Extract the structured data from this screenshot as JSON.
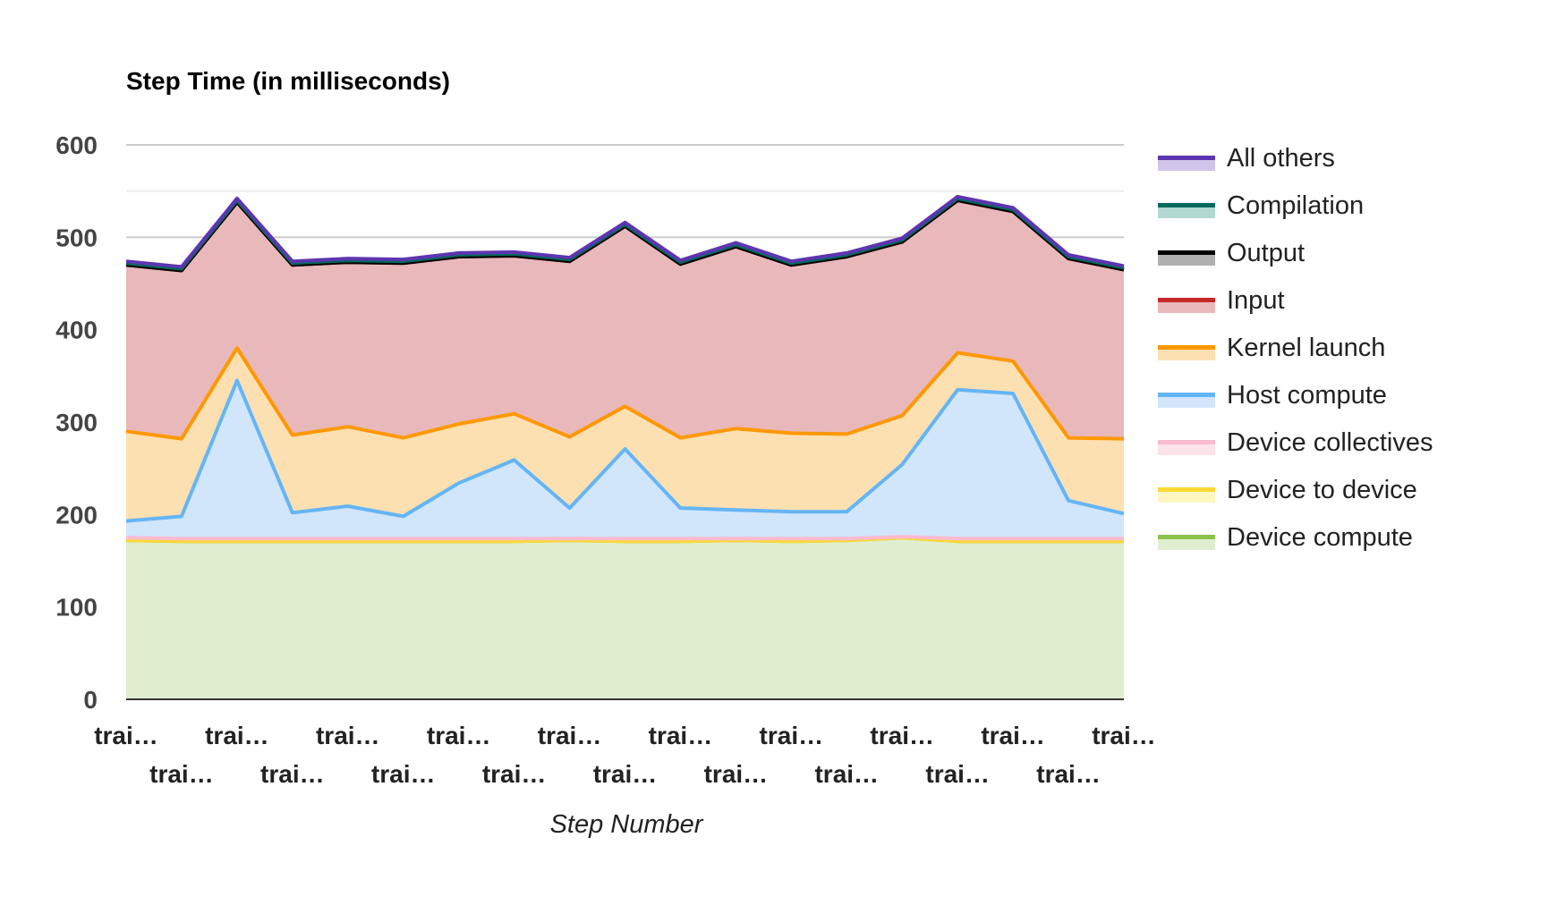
{
  "chart_data": {
    "type": "area",
    "stacked": true,
    "title": "Step Time (in milliseconds)",
    "xlabel": "Step Number",
    "ylabel": "",
    "ylim": [
      0,
      600
    ],
    "yticks": [
      0,
      100,
      200,
      300,
      400,
      500,
      600
    ],
    "grid": true,
    "legend_position": "right",
    "categories": [
      "trai…",
      "trai…",
      "trai…",
      "trai…",
      "trai…",
      "trai…",
      "trai…",
      "trai…",
      "trai…",
      "trai…",
      "trai…",
      "trai…",
      "trai…",
      "trai…",
      "trai…",
      "trai…",
      "trai…",
      "trai…",
      "trai…"
    ],
    "series": [
      {
        "name": "Device compute",
        "line_color": "#8bc34a",
        "fill_color": "#e0eed0",
        "values": [
          172,
          171,
          171,
          171,
          171,
          171,
          171,
          171,
          172,
          171,
          171,
          172,
          171,
          172,
          175,
          171,
          171,
          171,
          171
        ]
      },
      {
        "name": "Device to device",
        "line_color": "#fdd835",
        "fill_color": "#fff7c2",
        "values": [
          0,
          0,
          0,
          0,
          0,
          0,
          0,
          0,
          0,
          0,
          0,
          0,
          0,
          0,
          0,
          0,
          0,
          0,
          0
        ]
      },
      {
        "name": "Device collectives",
        "line_color": "#f8bbd0",
        "fill_color": "#fde4ea",
        "values": [
          3,
          3,
          3,
          3,
          3,
          3,
          3,
          3,
          2,
          3,
          3,
          2,
          3,
          2,
          1,
          3,
          3,
          3,
          3
        ]
      },
      {
        "name": "Host compute",
        "line_color": "#64b5f6",
        "fill_color": "#d1e6fa",
        "values": [
          18,
          24,
          171,
          28,
          35,
          24,
          60,
          85,
          33,
          97,
          33,
          31,
          29,
          29,
          78,
          161,
          157,
          41,
          27
        ]
      },
      {
        "name": "Kernel launch",
        "line_color": "#ff9800",
        "fill_color": "#fde0b2",
        "values": [
          97,
          84,
          35,
          84,
          86,
          85,
          64,
          50,
          77,
          46,
          76,
          88,
          85,
          84,
          53,
          40,
          35,
          68,
          81
        ]
      },
      {
        "name": "Input",
        "line_color": "#c62828",
        "fill_color": "#e8b8ba",
        "values": [
          180,
          182,
          158,
          184,
          178,
          189,
          181,
          171,
          190,
          195,
          188,
          197,
          182,
          192,
          188,
          165,
          162,
          194,
          183
        ]
      },
      {
        "name": "Output",
        "line_color": "#000000",
        "fill_color": "#b0b0b0",
        "values": [
          0,
          0,
          0,
          0,
          0,
          0,
          0,
          0,
          0,
          0,
          0,
          0,
          0,
          0,
          0,
          0,
          0,
          0,
          0
        ]
      },
      {
        "name": "Compilation",
        "line_color": "#00695c",
        "fill_color": "#b2d8d2",
        "values": [
          2,
          2,
          2,
          2,
          2,
          2,
          2,
          2,
          2,
          2,
          2,
          2,
          2,
          2,
          2,
          2,
          2,
          2,
          2
        ]
      },
      {
        "name": "All others",
        "line_color": "#5e35b1",
        "fill_color": "#d1c4e9",
        "values": [
          2,
          2,
          2,
          2,
          2,
          2,
          2,
          2,
          2,
          2,
          2,
          2,
          2,
          2,
          2,
          2,
          2,
          2,
          2
        ]
      }
    ],
    "legend_order": [
      "All others",
      "Compilation",
      "Output",
      "Input",
      "Kernel launch",
      "Host compute",
      "Device collectives",
      "Device to device",
      "Device compute"
    ]
  }
}
